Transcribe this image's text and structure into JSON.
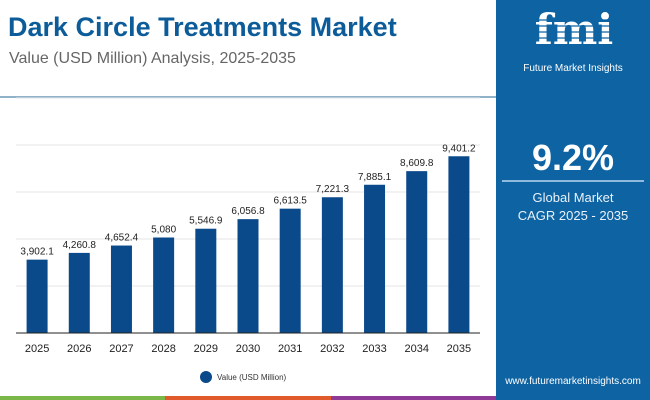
{
  "header": {
    "title": "Dark Circle Treatments Market",
    "subtitle": "Value (USD Million) Analysis, 2025-2035"
  },
  "brand": {
    "logo_letters": "fmi",
    "name": "Future Market Insights",
    "url": "www.futuremarketinsights.com"
  },
  "highlight": {
    "value": "9.2%",
    "label_line1": "Global Market",
    "label_line2": "CAGR 2025 - 2035"
  },
  "colors": {
    "bar": "#0b4a8a",
    "title": "#0d5c9a",
    "panel": "#0e63a3",
    "stripe": [
      "#7ab648",
      "#e05a2b",
      "#8e3a96"
    ]
  },
  "chart_data": {
    "type": "bar",
    "categories": [
      "2025",
      "2026",
      "2027",
      "2028",
      "2029",
      "2030",
      "2031",
      "2032",
      "2033",
      "2034",
      "2035"
    ],
    "series": [
      {
        "name": "Value (USD Million)",
        "values": [
          3902.1,
          4260.8,
          4652.4,
          5080,
          5546.9,
          6056.8,
          6613.5,
          7221.3,
          7885.1,
          8609.8,
          9401.2
        ]
      }
    ],
    "data_labels": [
      "3,902.1",
      "4,260.8",
      "4,652.4",
      "5,080",
      "5,546.9",
      "6,056.8",
      "6,613.5",
      "7,221.3",
      "7,885.1",
      "8,609.8",
      "9,401.2"
    ],
    "ylim": [
      0,
      12500
    ],
    "grid": true,
    "y_tick_labels_shown": false,
    "legend": "bottom-center"
  }
}
